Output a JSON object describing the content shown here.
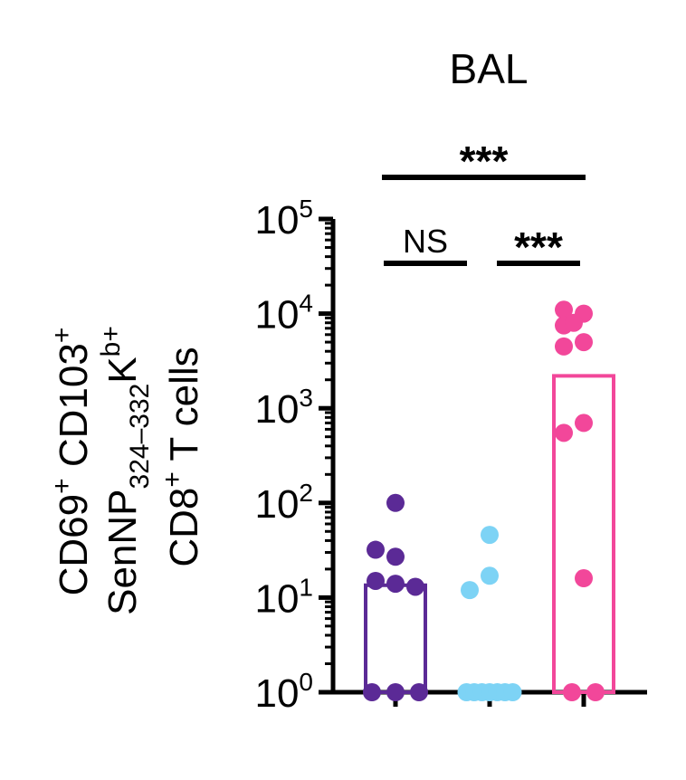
{
  "chart_data": {
    "type": "bar",
    "title": "BAL",
    "ylabel": {
      "line1": "CD69",
      "line1_sup": "+",
      "line1b": " CD103",
      "line1b_sup": "+",
      "line2": "SenNP",
      "line2_sub": "324–332",
      "line2b": "K",
      "line2b_sup": "b+",
      "line3": "CD8",
      "line3_sup": "+",
      "line3b": " T cells"
    },
    "yscale": "log",
    "ylim": [
      1,
      100000
    ],
    "yticks": [
      {
        "base": "10",
        "exp": "0",
        "value": 1
      },
      {
        "base": "10",
        "exp": "1",
        "value": 10
      },
      {
        "base": "10",
        "exp": "2",
        "value": 100
      },
      {
        "base": "10",
        "exp": "3",
        "value": 1000
      },
      {
        "base": "10",
        "exp": "4",
        "value": 10000
      },
      {
        "base": "10",
        "exp": "5",
        "value": 100000
      }
    ],
    "categories": [
      "",
      "",
      ""
    ],
    "groups": [
      {
        "color": "#5b2a96",
        "bar": 13.5,
        "points": [
          100,
          27,
          32,
          14,
          15,
          13,
          1,
          1,
          1
        ]
      },
      {
        "color": "#7dd3f5",
        "bar": 1,
        "points": [
          46,
          17,
          12,
          1,
          1,
          1,
          1,
          1,
          1,
          1
        ]
      },
      {
        "color": "#f2479a",
        "bar": 2200,
        "points": [
          10000,
          11000,
          7500,
          8000,
          5000,
          4500,
          700,
          550,
          16,
          1,
          1
        ]
      }
    ],
    "significance": [
      {
        "label": "NS",
        "from": 0,
        "to": 1
      },
      {
        "label": "***",
        "from": 1,
        "to": 2
      },
      {
        "label": "***",
        "from": 0,
        "to": 2
      }
    ]
  }
}
